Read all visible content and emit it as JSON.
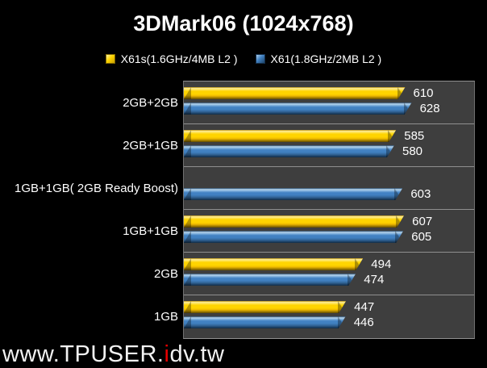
{
  "page": {
    "background": "#000000"
  },
  "chart_data": {
    "type": "bar",
    "orientation": "horizontal",
    "title": "3DMark06 (1024x768)",
    "categories": [
      "2GB+2GB",
      "2GB+1GB",
      "1GB+1GB( 2GB Ready Boost)",
      "1GB+1GB",
      "2GB",
      "1GB"
    ],
    "series": [
      {
        "name": "X61s(1.6GHz/4MB L2 )",
        "color": "#ffd400",
        "values": [
          610,
          585,
          null,
          607,
          494,
          447
        ]
      },
      {
        "name": "X61(1.8GHz/2MB L2 )",
        "color": "#4080c0",
        "values": [
          628,
          580,
          603,
          605,
          474,
          446
        ]
      }
    ],
    "xlim": [
      0,
      800
    ],
    "xlabel": "",
    "ylabel": "",
    "value_labels": true,
    "legend_position": "top-center",
    "grid": "horizontal-category-separators",
    "plot_background": "#3e3e3e",
    "gridline_color": "#8f8f8f",
    "text_color": "#ffffff"
  },
  "watermark": {
    "prefix": "www.TPUSER.",
    "highlight": "i",
    "suffix": "dv.tw",
    "text_color": "#f2f2f2",
    "highlight_color": "#e60000"
  }
}
